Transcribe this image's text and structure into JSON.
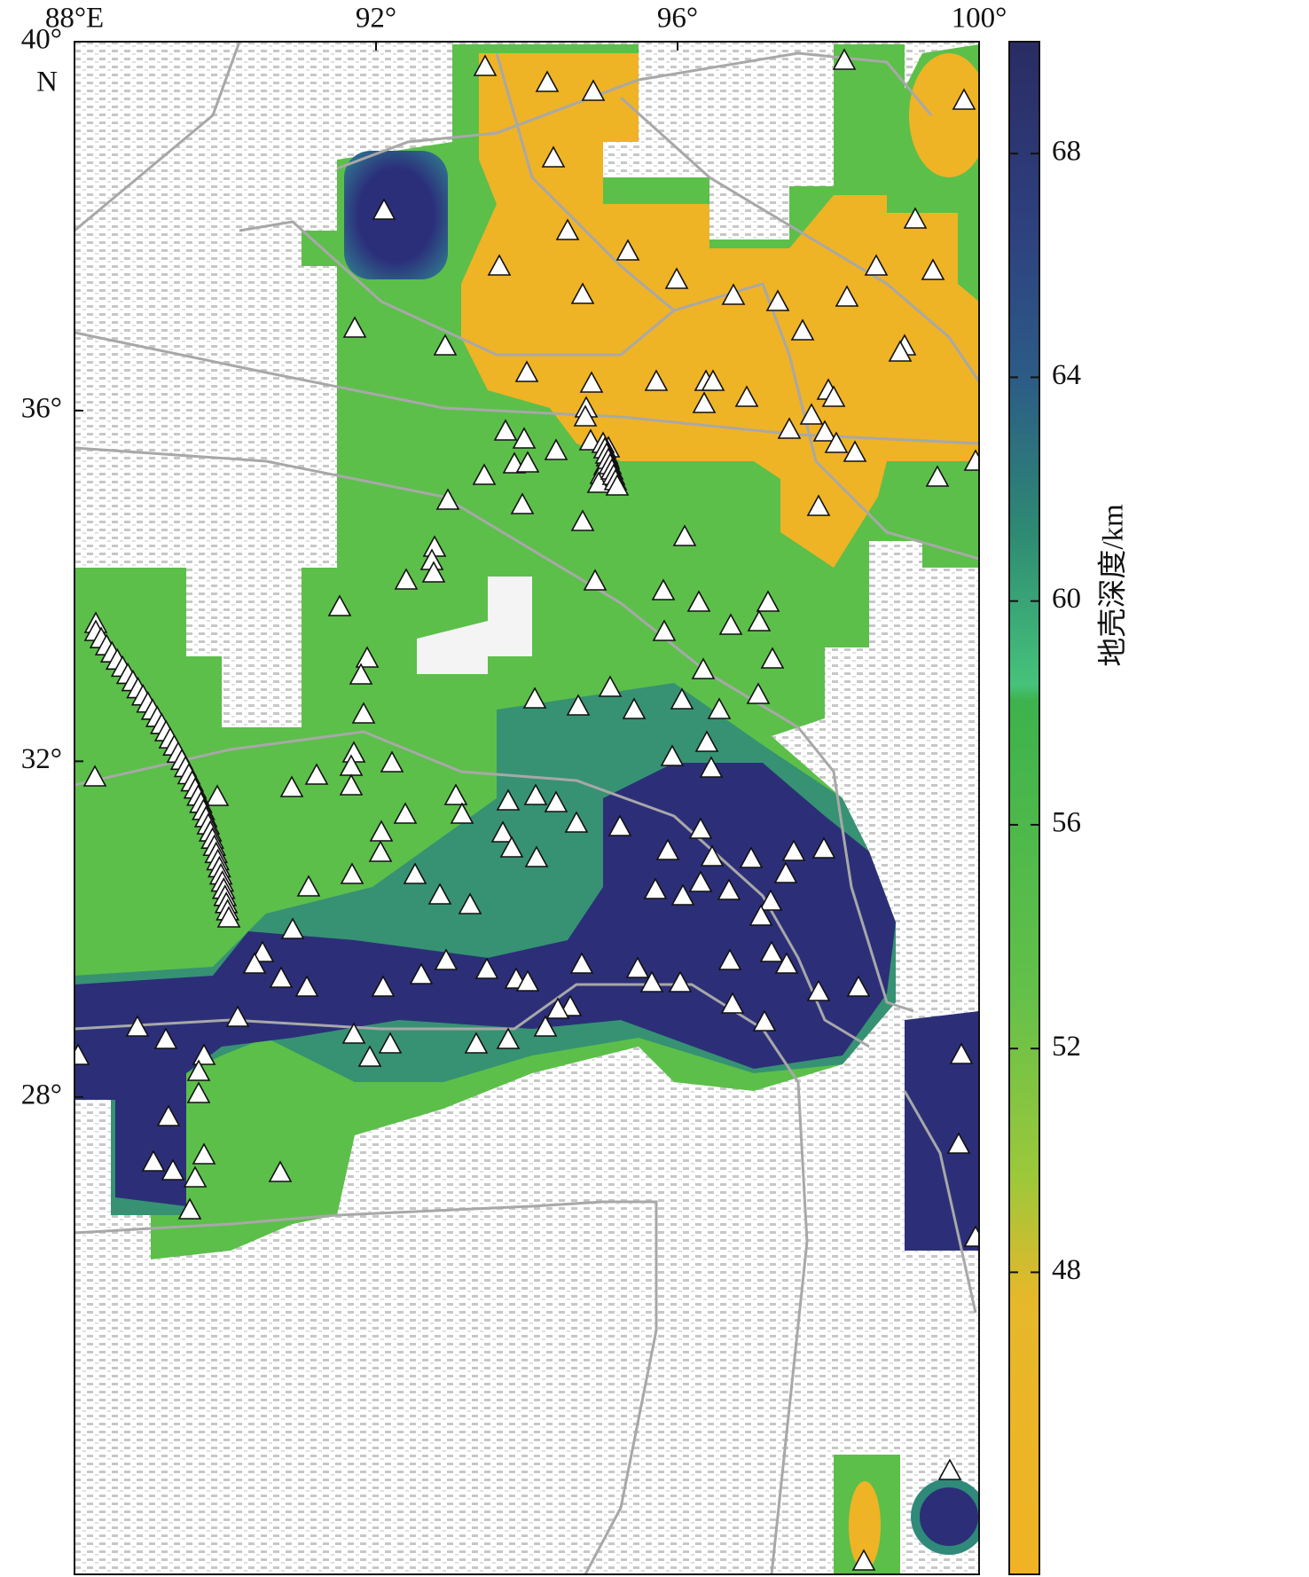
{
  "chart_data": {
    "type": "map",
    "projection": "mercator",
    "xlim": [
      88,
      100
    ],
    "xticks": [
      {
        "value": 88,
        "label": "88°E"
      },
      {
        "value": 92,
        "label": "92°"
      },
      {
        "value": 96,
        "label": "96°"
      },
      {
        "value": 100,
        "label": "100°"
      }
    ],
    "ylim": [
      22.05,
      40
    ],
    "yticks": [
      {
        "value": 40,
        "label": "40°"
      },
      {
        "value": 36,
        "label": "36°"
      },
      {
        "value": 32,
        "label": "32°"
      },
      {
        "value": 28,
        "label": "28°"
      }
    ],
    "hemisphere_label": "N",
    "colorbar": {
      "label": "地壳深度/km",
      "lim": [
        42.6,
        70
      ],
      "ticks": [
        48,
        52,
        56,
        60,
        64,
        68
      ]
    }
  }
}
